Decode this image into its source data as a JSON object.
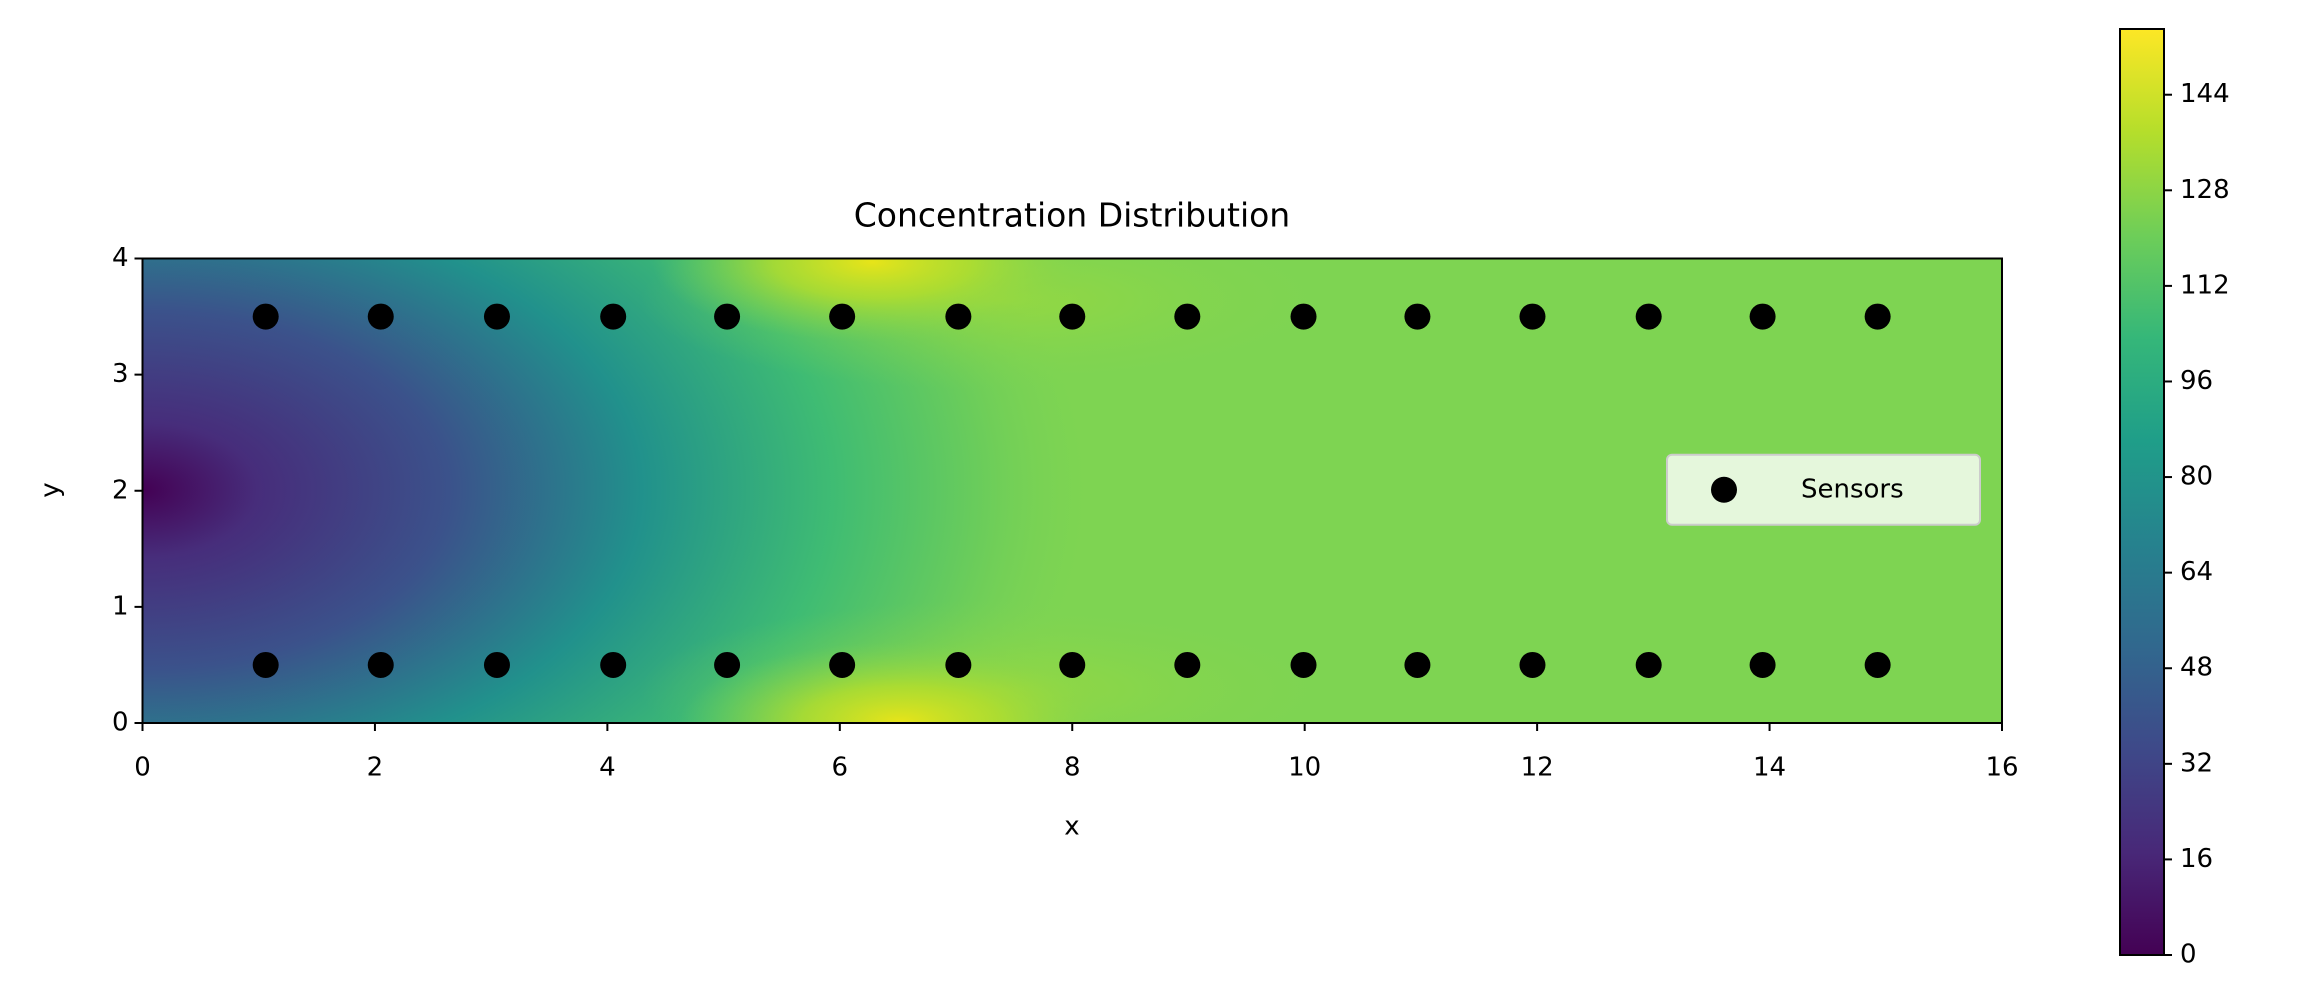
{
  "chart_data": {
    "type": "scatter",
    "title": "Concentration Distribution",
    "x_label": "x",
    "y_label": "y",
    "xlim": [
      0,
      16
    ],
    "ylim": [
      0,
      4
    ],
    "xticks": [
      0,
      2,
      4,
      6,
      8,
      10,
      12,
      14,
      16
    ],
    "yticks": [
      0,
      1,
      2,
      3,
      4
    ],
    "legend": "center right",
    "series": [
      {
        "name": "Sensors",
        "color": "#000000",
        "x": [
          1.06,
          2.05,
          3.05,
          4.05,
          5.03,
          6.02,
          7.02,
          8.0,
          8.99,
          9.99,
          10.97,
          11.96,
          12.96,
          13.94,
          14.93,
          1.06,
          2.05,
          3.05,
          4.05,
          5.03,
          6.02,
          7.02,
          8.0,
          8.99,
          9.99,
          10.97,
          11.96,
          12.96,
          13.94,
          14.93
        ],
        "y": [
          3.5,
          3.5,
          3.5,
          3.5,
          3.5,
          3.5,
          3.5,
          3.5,
          3.5,
          3.5,
          3.5,
          3.5,
          3.5,
          3.5,
          3.5,
          0.5,
          0.5,
          0.5,
          0.5,
          0.5,
          0.5,
          0.5,
          0.5,
          0.5,
          0.5,
          0.5,
          0.5,
          0.5,
          0.5,
          0.5
        ]
      }
    ],
    "colorbar": {
      "colormap": "viridis",
      "lim": [
        0,
        155
      ],
      "ticks": [
        0,
        16,
        32,
        48,
        64,
        80,
        96,
        112,
        128,
        144
      ]
    }
  }
}
